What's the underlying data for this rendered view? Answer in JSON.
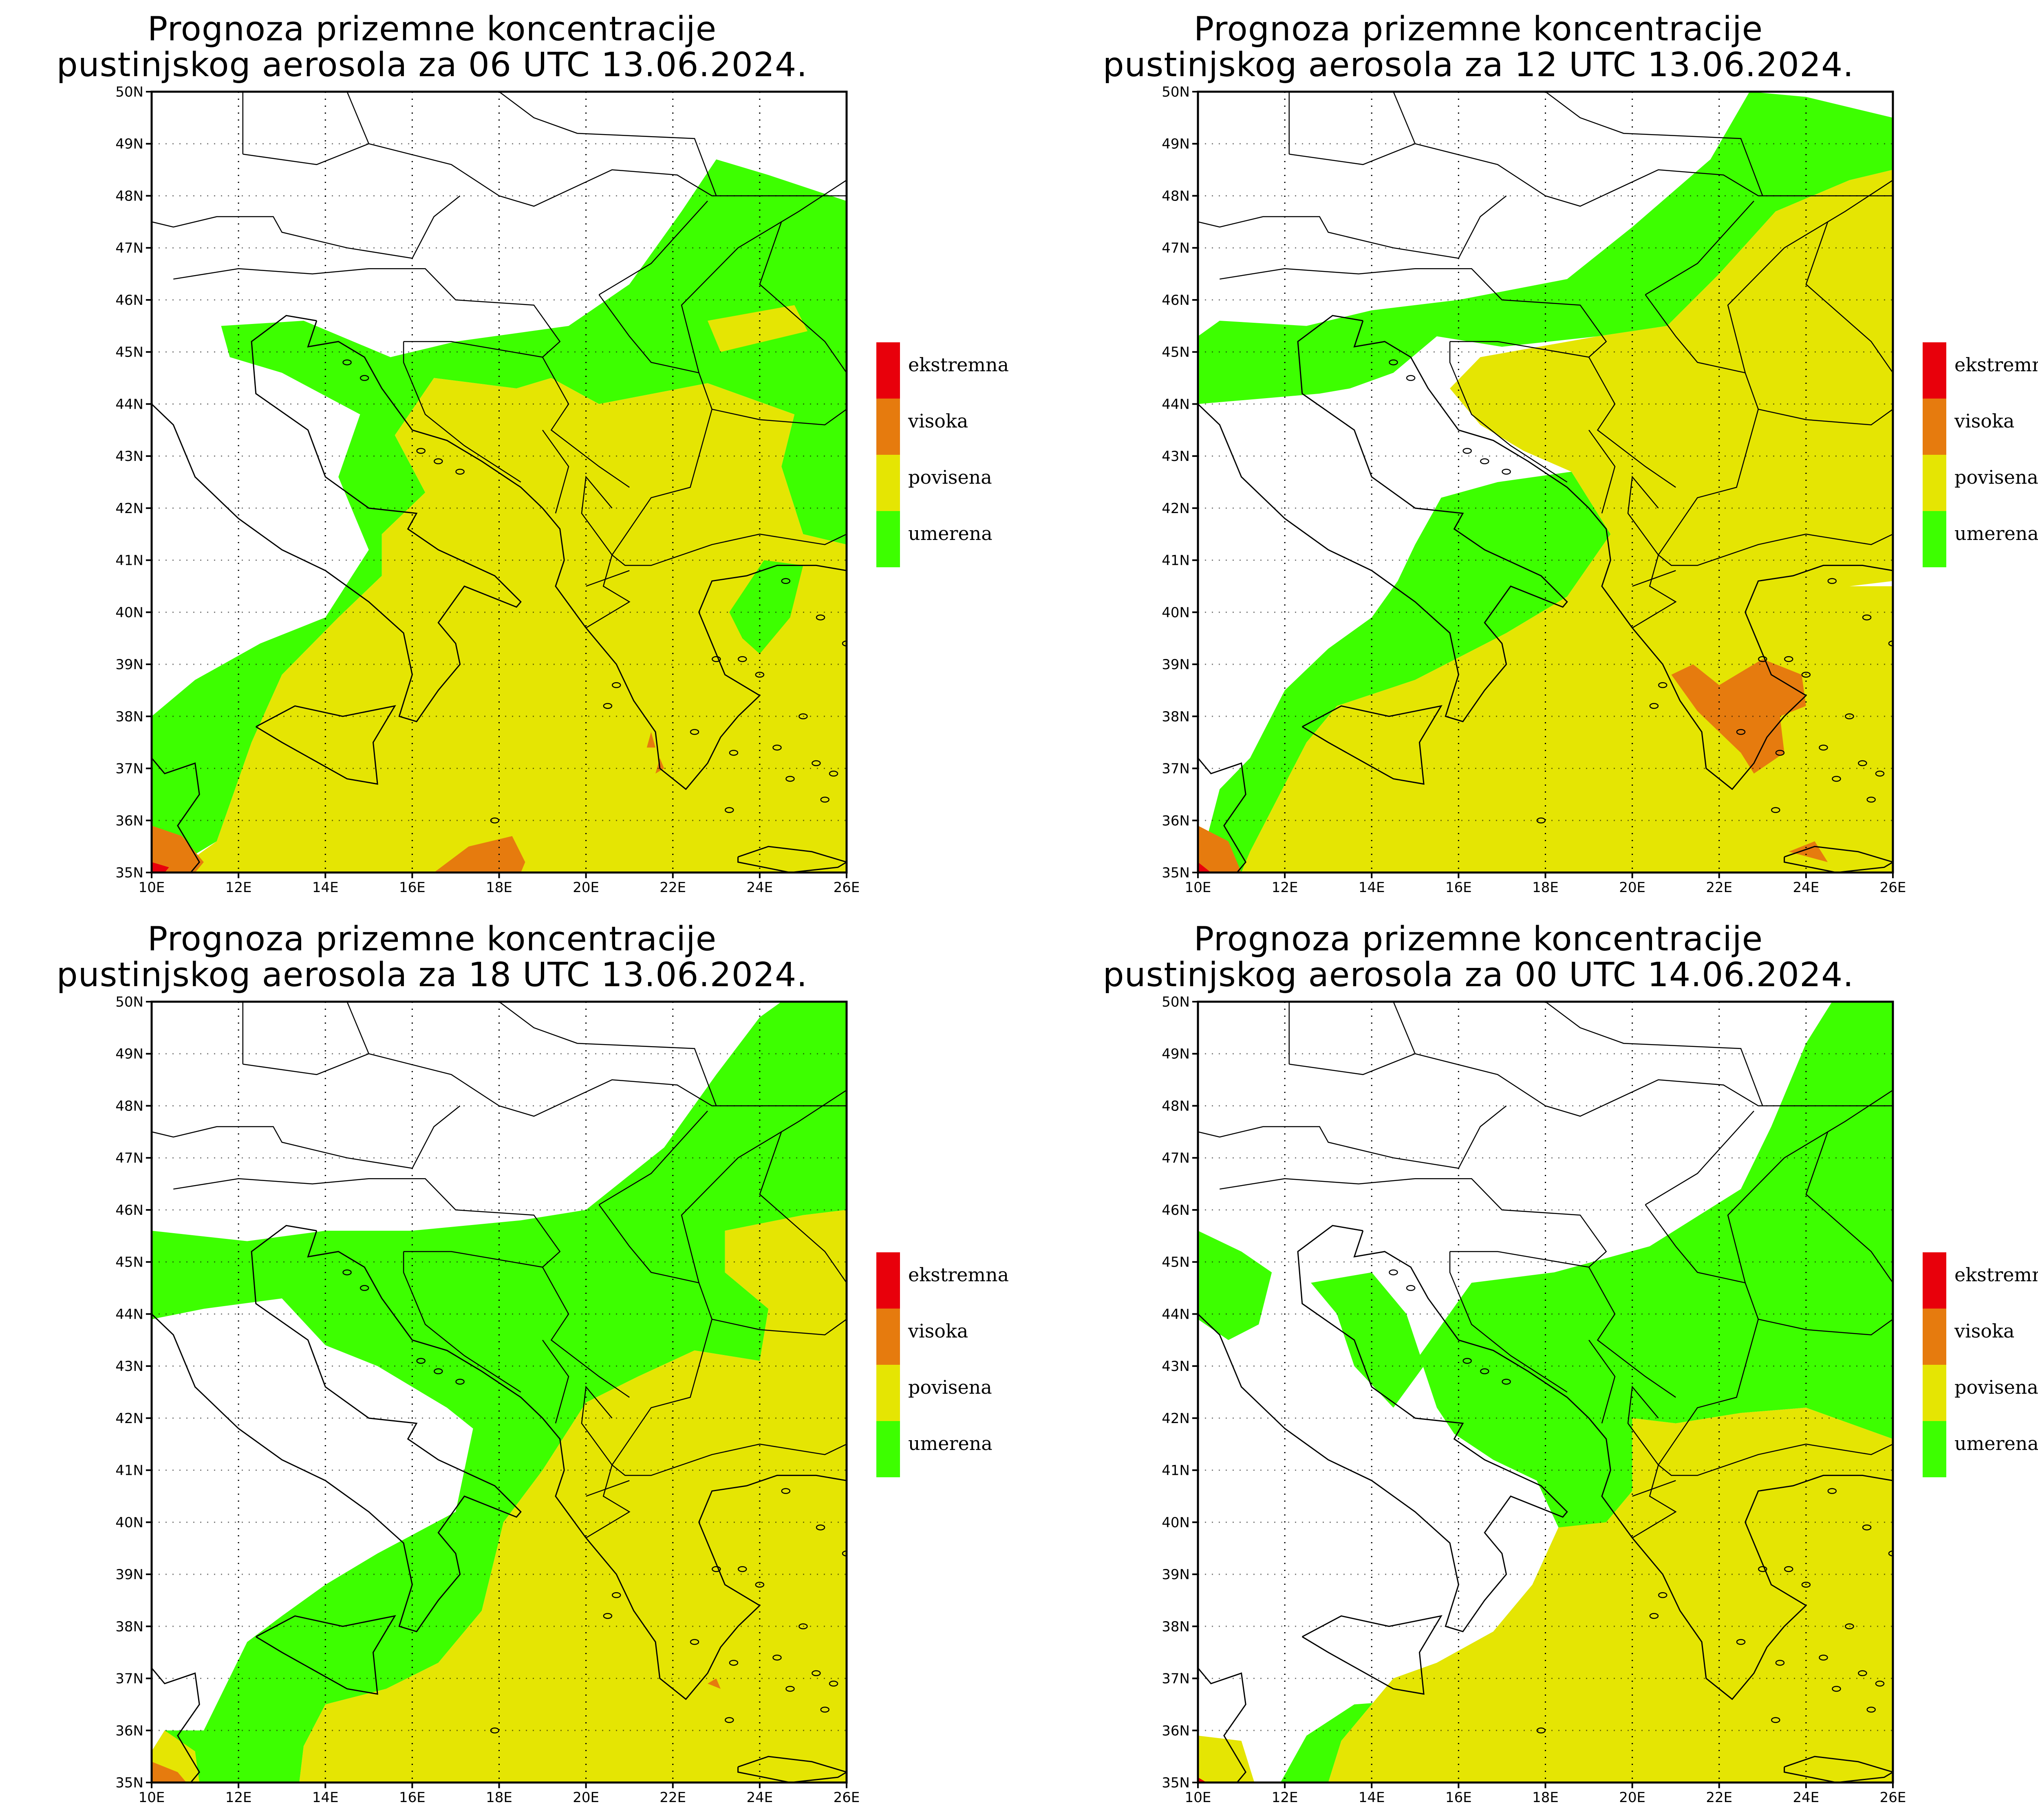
{
  "colors": {
    "ekstremna": "#e8000b",
    "visoka": "#e67b0e",
    "povisena": "#e5e503",
    "umerena": "#3dff00",
    "border": "#000000"
  },
  "legend": {
    "items": [
      {
        "key": "ekstremna",
        "label": "ekstremna"
      },
      {
        "key": "visoka",
        "label": "visoka"
      },
      {
        "key": "povisena",
        "label": "povisena"
      },
      {
        "key": "umerena",
        "label": "umerena"
      }
    ]
  },
  "axes": {
    "x_ticks": [
      "10E",
      "12E",
      "14E",
      "16E",
      "18E",
      "20E",
      "22E",
      "24E",
      "26E"
    ],
    "y_ticks": [
      "35N",
      "36N",
      "37N",
      "38N",
      "39N",
      "40N",
      "41N",
      "42N",
      "43N",
      "44N",
      "45N",
      "46N",
      "47N",
      "48N",
      "49N",
      "50N"
    ],
    "lon_range": [
      10,
      26
    ],
    "lat_range": [
      35,
      50
    ]
  },
  "panels": [
    {
      "title_line1": "Prognoza prizemne koncentracije",
      "title_line2": "pustinjskog aerosola za 06 UTC 13.06.2024."
    },
    {
      "title_line1": "Prognoza prizemne koncentracije",
      "title_line2": "pustinjskog aerosola za 12 UTC 13.06.2024."
    },
    {
      "title_line1": "Prognoza prizemne koncentracije",
      "title_line2": "pustinjskog aerosola za 18 UTC 13.06.2024."
    },
    {
      "title_line1": "Prognoza prizemne koncentracije",
      "title_line2": "pustinjskog aerosola za 00 UTC 14.06.2024."
    }
  ]
}
